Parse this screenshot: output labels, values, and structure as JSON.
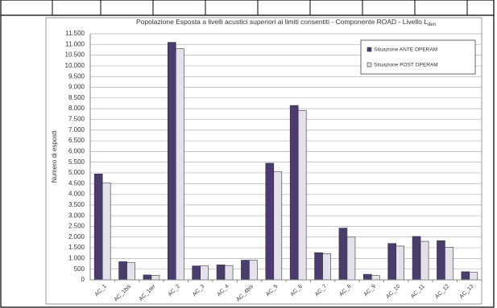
{
  "chart_data": {
    "type": "bar",
    "title": "Popolazione Esposta a livelli acustici superiori ai limiti consentiti - Componente ROAD - Livello L",
    "title_subscript": "den",
    "y_label": "Numero di esposti",
    "categories": [
      "AC_1",
      "AC_1bis",
      "AC_1ter",
      "AC_2",
      "AC_3",
      "AC_4",
      "AC_4bis",
      "AC_5",
      "AC_6",
      "AC_7",
      "AC_8",
      "AC_9",
      "AC_10",
      "AC_11",
      "AC_12",
      "AC_13"
    ],
    "series": [
      {
        "name": "Situazione ANTE OPERAM",
        "color": "#4b3b6f",
        "values": [
          4950,
          850,
          230,
          11100,
          650,
          700,
          920,
          5450,
          8150,
          1270,
          2420,
          260,
          1700,
          2030,
          1830,
          380
        ]
      },
      {
        "name": "Situazione POST OPERAM",
        "color": "#e4e0ec",
        "values": [
          4530,
          800,
          210,
          10800,
          650,
          670,
          920,
          5050,
          7920,
          1230,
          2000,
          200,
          1580,
          1800,
          1530,
          350
        ]
      }
    ],
    "ylim": [
      0,
      11500
    ],
    "yticks": [
      0,
      500,
      {
        "value": 1000,
        "label": "1.000"
      },
      {
        "value": 1500,
        "label": "1.500"
      },
      {
        "value": 2000,
        "label": "2.000"
      },
      {
        "value": 2500,
        "label": "2.500"
      },
      {
        "value": 3000,
        "label": "3.000"
      },
      {
        "value": 3500,
        "label": "3.500"
      },
      {
        "value": 4000,
        "label": "4.000"
      },
      {
        "value": 4500,
        "label": "4.500"
      },
      {
        "value": 5000,
        "label": "5.000"
      },
      {
        "value": 5500,
        "label": "5.500"
      },
      {
        "value": 6000,
        "label": "6.000"
      },
      {
        "value": 6500,
        "label": "6.500"
      },
      {
        "value": 7000,
        "label": "7.000"
      },
      {
        "value": 7500,
        "label": "7.500"
      },
      {
        "value": 8000,
        "label": "8.000"
      },
      {
        "value": 8500,
        "label": "8.500"
      },
      {
        "value": 9000,
        "label": "9.000"
      },
      {
        "value": 9500,
        "label": "9.500"
      },
      {
        "value": 10000,
        "label": "10.000"
      },
      {
        "value": 10500,
        "label": "10.500"
      },
      {
        "value": 11000,
        "label": "11.000"
      },
      {
        "value": 11500,
        "label": "11.500"
      }
    ],
    "grid": true,
    "legend": "upper right"
  }
}
